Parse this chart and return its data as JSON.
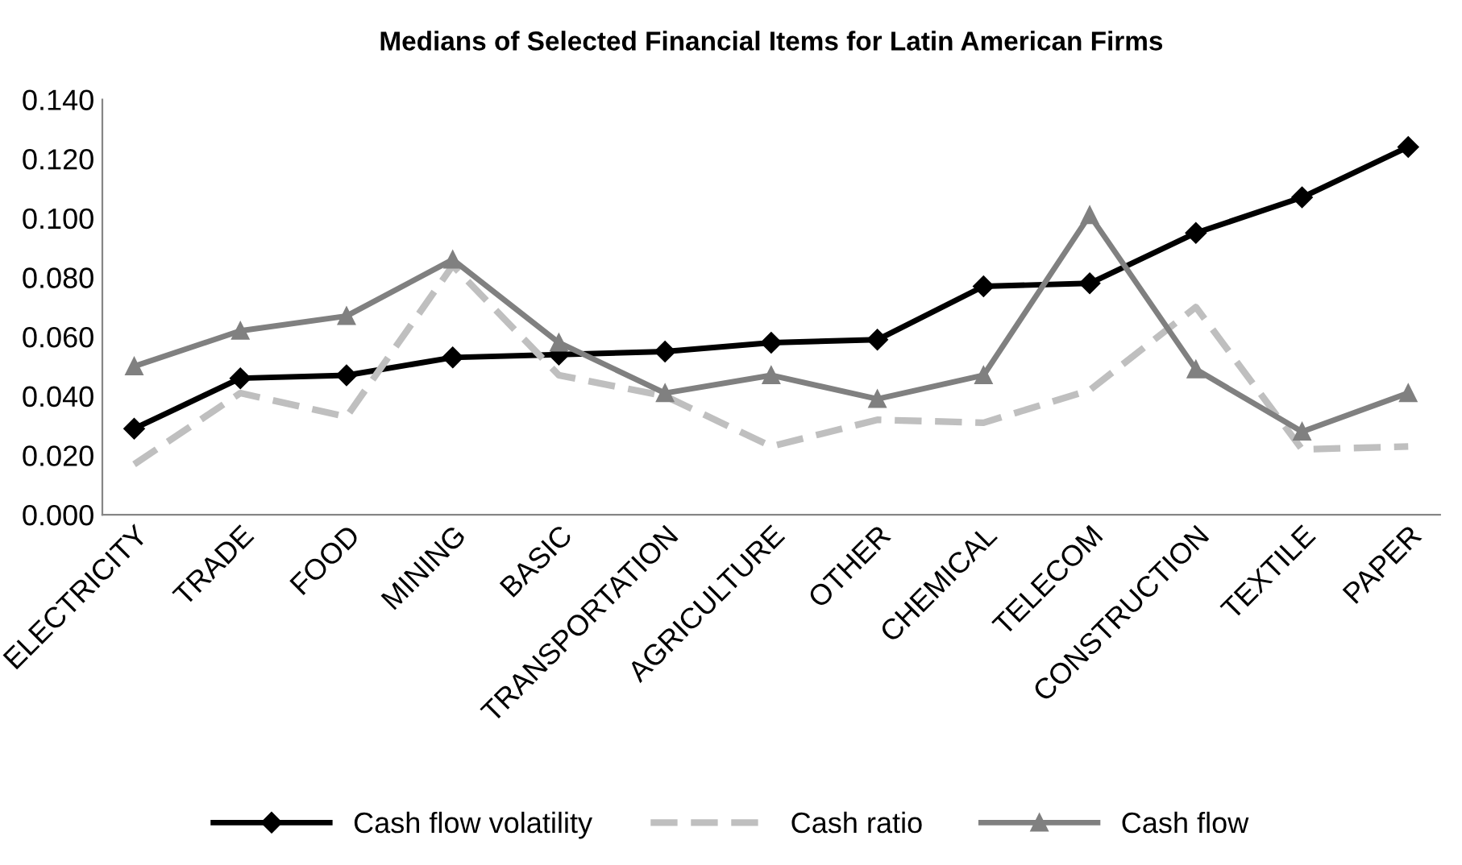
{
  "chart_data": {
    "type": "line",
    "title": "Medians of Selected Financial Items for Latin American Firms",
    "categories": [
      "ELECTRICITY",
      "TRADE",
      "FOOD",
      "MINING",
      "BASIC",
      "TRANSPORTATION",
      "AGRICULTURE",
      "OTHER",
      "CHEMICAL",
      "TELECOM",
      "CONSTRUCTION",
      "TEXTILE",
      "PAPER"
    ],
    "series": [
      {
        "name": "Cash flow volatility",
        "color": "#000000",
        "marker": "diamond",
        "line_style": "solid",
        "values": [
          0.029,
          0.046,
          0.047,
          0.053,
          0.054,
          0.055,
          0.058,
          0.059,
          0.077,
          0.078,
          0.095,
          0.107,
          0.124
        ]
      },
      {
        "name": "Cash ratio",
        "color": "#bfbfbf",
        "marker": "none",
        "line_style": "dashed",
        "values": [
          0.017,
          0.041,
          0.033,
          0.084,
          0.047,
          0.04,
          0.023,
          0.032,
          0.031,
          0.042,
          0.07,
          0.022,
          0.023
        ]
      },
      {
        "name": "Cash flow",
        "color": "#808080",
        "marker": "triangle",
        "line_style": "solid",
        "values": [
          0.05,
          0.062,
          0.067,
          0.086,
          0.058,
          0.041,
          0.047,
          0.039,
          0.047,
          0.101,
          0.049,
          0.028,
          0.041
        ]
      }
    ],
    "ylim": [
      0,
      0.14
    ],
    "yticks": [
      {
        "value": 0,
        "label": "0.000"
      },
      {
        "value": 0.02,
        "label": "0.020"
      },
      {
        "value": 0.04,
        "label": "0.040"
      },
      {
        "value": 0.06,
        "label": "0.060"
      },
      {
        "value": 0.08,
        "label": "0.080"
      },
      {
        "value": 0.1,
        "label": "0.100"
      },
      {
        "value": 0.12,
        "label": "0.120"
      },
      {
        "value": 0.14,
        "label": "0.140"
      }
    ],
    "grid": false,
    "legend": "bottom"
  }
}
